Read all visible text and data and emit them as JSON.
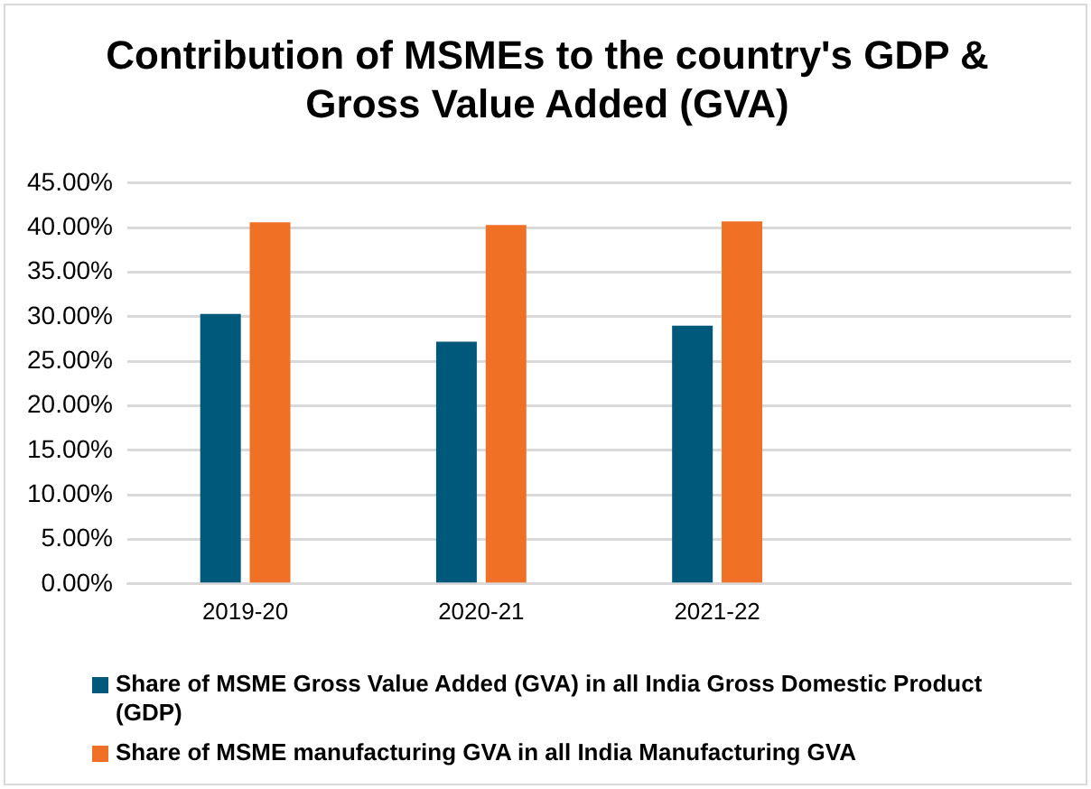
{
  "chart_data": {
    "type": "bar",
    "title": "Contribution of MSMEs to the country's GDP & Gross Value Added (GVA)",
    "categories": [
      "2019-20",
      "2020-21",
      "2021-22",
      null
    ],
    "series": [
      {
        "name": "Share of MSME Gross Value Added (GVA) in all India Gross Domestic Product (GDP)",
        "color": "#00587a",
        "values": [
          30.3,
          27.2,
          29.0,
          null
        ]
      },
      {
        "name": "Share of MSME manufacturing GVA in all India Manufacturing GVA",
        "color": "#f07026",
        "values": [
          40.6,
          40.3,
          40.7,
          null
        ]
      }
    ],
    "ylim": [
      0,
      45
    ],
    "yticks": [
      {
        "value": 0,
        "label": "0.00%"
      },
      {
        "value": 5,
        "label": "5.00%"
      },
      {
        "value": 10,
        "label": "10.00%"
      },
      {
        "value": 15,
        "label": "15.00%"
      },
      {
        "value": 20,
        "label": "20.00%"
      },
      {
        "value": 25,
        "label": "25.00%"
      },
      {
        "value": 30,
        "label": "30.00%"
      },
      {
        "value": 35,
        "label": "35.00%"
      },
      {
        "value": 40,
        "label": "40.00%"
      },
      {
        "value": 45,
        "label": "45.00%"
      }
    ],
    "grid": "y",
    "legend": "bottom"
  }
}
